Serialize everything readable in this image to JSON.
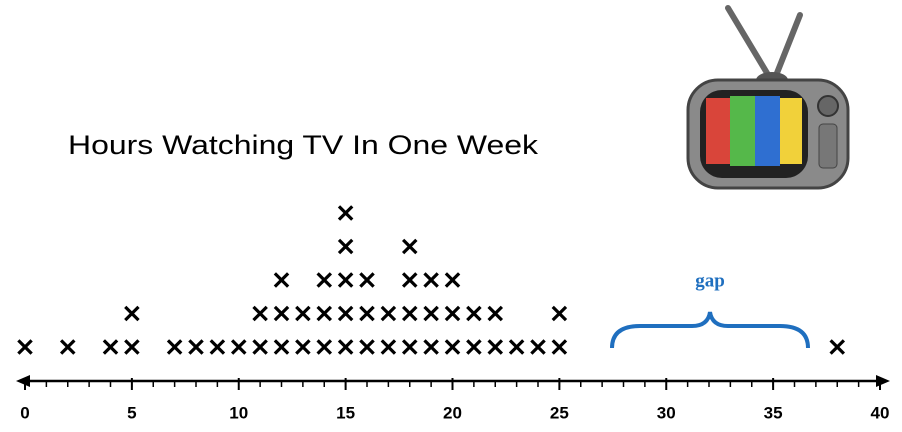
{
  "chart_data": {
    "type": "dot",
    "title": "Hours Watching TV In One Week",
    "x": [
      0,
      1,
      2,
      3,
      4,
      5,
      6,
      7,
      8,
      9,
      10,
      11,
      12,
      13,
      14,
      15,
      16,
      17,
      18,
      19,
      20,
      21,
      22,
      23,
      24,
      25,
      26,
      27,
      28,
      29,
      30,
      31,
      32,
      33,
      34,
      35,
      36,
      37,
      38,
      39,
      40
    ],
    "values": [
      1,
      0,
      1,
      0,
      1,
      2,
      0,
      1,
      1,
      1,
      1,
      2,
      3,
      2,
      3,
      5,
      3,
      2,
      4,
      3,
      3,
      2,
      2,
      1,
      1,
      2,
      0,
      0,
      0,
      0,
      0,
      0,
      0,
      0,
      0,
      0,
      0,
      0,
      1,
      0,
      0
    ],
    "xlim": [
      0,
      40
    ],
    "xticks": [
      0,
      5,
      10,
      15,
      20,
      25,
      30,
      35,
      40
    ],
    "color": "#000000",
    "annotation": "gap",
    "annotation_color": "#1f6fbf"
  }
}
